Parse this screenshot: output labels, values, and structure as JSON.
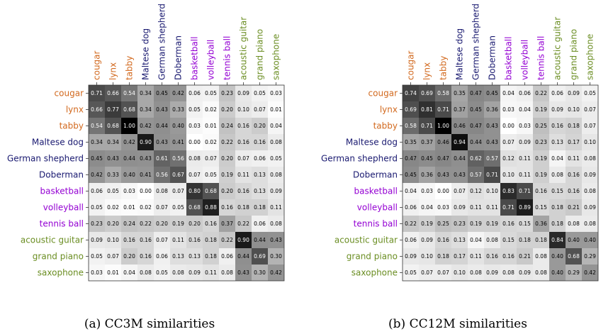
{
  "labels": [
    "cougar",
    "lynx",
    "tabby",
    "Maltese dog",
    "German shepherd",
    "Doberman",
    "basketball",
    "volleyball",
    "tennis ball",
    "acoustic guitar",
    "grand piano",
    "saxophone"
  ],
  "label_colors": [
    "#d2691e",
    "#d2691e",
    "#d2691e",
    "#191970",
    "#191970",
    "#191970",
    "#9400d3",
    "#9400d3",
    "#9400d3",
    "#6b8e23",
    "#6b8e23",
    "#6b8e23"
  ],
  "chart_data": [
    {
      "type": "heatmap",
      "title": "(a) CC3M similarities",
      "values": [
        [
          0.71,
          0.66,
          0.54,
          0.34,
          0.45,
          0.42,
          0.06,
          0.05,
          0.23,
          0.09,
          0.05,
          0.03
        ],
        [
          0.66,
          0.77,
          0.68,
          0.34,
          0.43,
          0.33,
          0.05,
          0.02,
          0.2,
          0.1,
          0.07,
          0.01
        ],
        [
          0.54,
          0.68,
          1.0,
          0.42,
          0.44,
          0.4,
          0.03,
          0.01,
          0.24,
          0.16,
          0.2,
          0.04
        ],
        [
          0.34,
          0.34,
          0.42,
          0.9,
          0.43,
          0.41,
          0.0,
          0.02,
          0.22,
          0.16,
          0.16,
          0.08
        ],
        [
          0.45,
          0.43,
          0.44,
          0.43,
          0.61,
          0.56,
          0.08,
          0.07,
          0.2,
          0.07,
          0.06,
          0.05
        ],
        [
          0.42,
          0.33,
          0.4,
          0.41,
          0.56,
          0.67,
          0.07,
          0.05,
          0.19,
          0.11,
          0.13,
          0.08
        ],
        [
          0.06,
          0.05,
          0.03,
          0.0,
          0.08,
          0.07,
          0.8,
          0.68,
          0.2,
          0.16,
          0.13,
          0.09
        ],
        [
          0.05,
          0.02,
          0.01,
          0.02,
          0.07,
          0.05,
          0.68,
          0.88,
          0.16,
          0.18,
          0.18,
          0.11
        ],
        [
          0.23,
          0.2,
          0.24,
          0.22,
          0.2,
          0.19,
          0.2,
          0.16,
          0.37,
          0.22,
          0.06,
          0.08
        ],
        [
          0.09,
          0.1,
          0.16,
          0.16,
          0.07,
          0.11,
          0.16,
          0.18,
          0.22,
          0.9,
          0.44,
          0.43
        ],
        [
          0.05,
          0.07,
          0.2,
          0.16,
          0.06,
          0.13,
          0.13,
          0.18,
          0.06,
          0.44,
          0.69,
          0.3
        ],
        [
          0.03,
          0.01,
          0.04,
          0.08,
          0.05,
          0.08,
          0.09,
          0.11,
          0.08,
          0.43,
          0.3,
          0.42
        ]
      ]
    },
    {
      "type": "heatmap",
      "title": "(b) CC12M similarities",
      "values": [
        [
          0.74,
          0.69,
          0.58,
          0.35,
          0.47,
          0.45,
          0.04,
          0.06,
          0.22,
          0.06,
          0.09,
          0.05
        ],
        [
          0.69,
          0.81,
          0.71,
          0.37,
          0.45,
          0.36,
          0.03,
          0.04,
          0.19,
          0.09,
          0.1,
          0.07
        ],
        [
          0.58,
          0.71,
          1.0,
          0.46,
          0.47,
          0.43,
          0.0,
          0.03,
          0.25,
          0.16,
          0.18,
          0.07
        ],
        [
          0.35,
          0.37,
          0.46,
          0.94,
          0.44,
          0.43,
          0.07,
          0.09,
          0.23,
          0.13,
          0.17,
          0.1
        ],
        [
          0.47,
          0.45,
          0.47,
          0.44,
          0.62,
          0.57,
          0.12,
          0.11,
          0.19,
          0.04,
          0.11,
          0.08
        ],
        [
          0.45,
          0.36,
          0.43,
          0.43,
          0.57,
          0.71,
          0.1,
          0.11,
          0.19,
          0.08,
          0.16,
          0.09
        ],
        [
          0.04,
          0.03,
          0.0,
          0.07,
          0.12,
          0.1,
          0.83,
          0.71,
          0.16,
          0.15,
          0.16,
          0.08
        ],
        [
          0.06,
          0.04,
          0.03,
          0.09,
          0.11,
          0.11,
          0.71,
          0.89,
          0.15,
          0.18,
          0.21,
          0.09
        ],
        [
          0.22,
          0.19,
          0.25,
          0.23,
          0.19,
          0.19,
          0.16,
          0.15,
          0.36,
          0.18,
          0.08,
          0.08
        ],
        [
          0.06,
          0.09,
          0.16,
          0.13,
          0.04,
          0.08,
          0.15,
          0.18,
          0.18,
          0.84,
          0.4,
          0.4
        ],
        [
          0.09,
          0.1,
          0.18,
          0.17,
          0.11,
          0.16,
          0.16,
          0.21,
          0.08,
          0.4,
          0.68,
          0.29
        ],
        [
          0.05,
          0.07,
          0.07,
          0.1,
          0.08,
          0.09,
          0.08,
          0.09,
          0.08,
          0.4,
          0.29,
          0.42
        ]
      ]
    }
  ]
}
